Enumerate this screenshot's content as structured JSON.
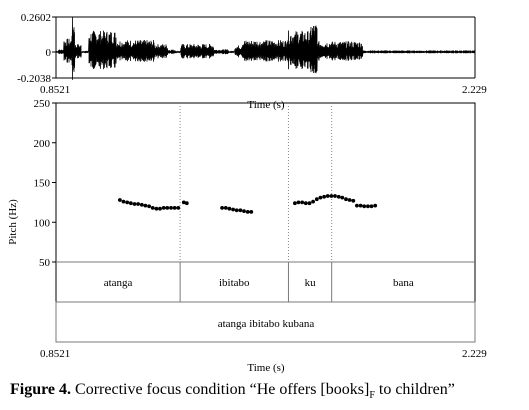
{
  "chart_data": [
    {
      "type": "line",
      "panel": "waveform",
      "ylim": [
        -0.2038,
        0.2602
      ],
      "yticks": [
        "0.2602",
        "0",
        "-0.2038"
      ],
      "xlim": [
        0.8521,
        2.229
      ],
      "xtick_labels": [
        "0.8521",
        "2.229"
      ],
      "xlabel": "Time (s)",
      "amplitude_segments": [
        {
          "start": 0.86,
          "end": 0.878,
          "amp": 0.02
        },
        {
          "start": 0.878,
          "end": 0.904,
          "amp": 0.1
        },
        {
          "start": 0.904,
          "end": 0.914,
          "amp": 0.26
        },
        {
          "start": 0.914,
          "end": 0.935,
          "amp": 0.06
        },
        {
          "start": 0.96,
          "end": 1.05,
          "amp": 0.16
        },
        {
          "start": 1.05,
          "end": 1.175,
          "amp": 0.09
        },
        {
          "start": 1.175,
          "end": 1.22,
          "amp": 0.06
        },
        {
          "start": 1.22,
          "end": 1.246,
          "amp": 0.02
        },
        {
          "start": 1.262,
          "end": 1.37,
          "amp": 0.06
        },
        {
          "start": 1.37,
          "end": 1.42,
          "amp": 0.02
        },
        {
          "start": 1.44,
          "end": 1.462,
          "amp": 0.05
        },
        {
          "start": 1.462,
          "end": 1.61,
          "amp": 0.09
        },
        {
          "start": 1.61,
          "end": 1.69,
          "amp": 0.16
        },
        {
          "start": 1.69,
          "end": 1.71,
          "amp": 0.22
        },
        {
          "start": 1.71,
          "end": 1.86,
          "amp": 0.08
        },
        {
          "start": 1.86,
          "end": 2.229,
          "amp": 0.012
        }
      ]
    },
    {
      "type": "scatter",
      "panel": "pitch",
      "ylabel": "Pitch (Hz)",
      "ylim": [
        50,
        250
      ],
      "yticks": [
        50,
        100,
        150,
        200,
        250
      ],
      "xlim": [
        0.8521,
        2.229
      ],
      "xtick_labels": [
        "0.8521",
        "2.229"
      ],
      "xlabel": "Time (s)",
      "points": [
        [
          1.062,
          128
        ],
        [
          1.074,
          126
        ],
        [
          1.086,
          125
        ],
        [
          1.098,
          124
        ],
        [
          1.11,
          123
        ],
        [
          1.122,
          123
        ],
        [
          1.134,
          122
        ],
        [
          1.146,
          121
        ],
        [
          1.158,
          120
        ],
        [
          1.17,
          118
        ],
        [
          1.182,
          117
        ],
        [
          1.194,
          117
        ],
        [
          1.206,
          118
        ],
        [
          1.218,
          118
        ],
        [
          1.23,
          118
        ],
        [
          1.242,
          118
        ],
        [
          1.254,
          118
        ],
        [
          1.272,
          125
        ],
        [
          1.282,
          124
        ],
        [
          1.398,
          118
        ],
        [
          1.41,
          118
        ],
        [
          1.422,
          117
        ],
        [
          1.434,
          116
        ],
        [
          1.446,
          115
        ],
        [
          1.458,
          115
        ],
        [
          1.47,
          114
        ],
        [
          1.482,
          113
        ],
        [
          1.494,
          113
        ],
        [
          1.637,
          124
        ],
        [
          1.649,
          125
        ],
        [
          1.661,
          125
        ],
        [
          1.673,
          124
        ],
        [
          1.685,
          124
        ],
        [
          1.697,
          126
        ],
        [
          1.709,
          129
        ],
        [
          1.721,
          131
        ],
        [
          1.733,
          132
        ],
        [
          1.745,
          133
        ],
        [
          1.757,
          133
        ],
        [
          1.769,
          133
        ],
        [
          1.781,
          132
        ],
        [
          1.793,
          131
        ],
        [
          1.805,
          129
        ],
        [
          1.817,
          128
        ],
        [
          1.829,
          127
        ],
        [
          1.841,
          121
        ],
        [
          1.853,
          121
        ],
        [
          1.865,
          120
        ],
        [
          1.877,
          120
        ],
        [
          1.889,
          120
        ],
        [
          1.901,
          121
        ]
      ],
      "boundaries": [
        1.26,
        1.616,
        1.758
      ],
      "words": [
        {
          "label": "atanga",
          "start": 0.8521,
          "end": 1.26
        },
        {
          "label": "ibitabo",
          "start": 1.26,
          "end": 1.616
        },
        {
          "label": "ku",
          "start": 1.616,
          "end": 1.758
        },
        {
          "label": "bana",
          "start": 1.758,
          "end": 2.229
        }
      ],
      "sentence": "atanga ibitabo kubana"
    }
  ],
  "caption": {
    "label": "Figure 4.",
    "text_before": " Corrective focus condition “He offers [books]",
    "subscript": "F",
    "text_after": " to children”"
  },
  "colors": {
    "ink": "#000000",
    "rule": "#7a7a7a",
    "dotted": "#8a8a8a"
  }
}
